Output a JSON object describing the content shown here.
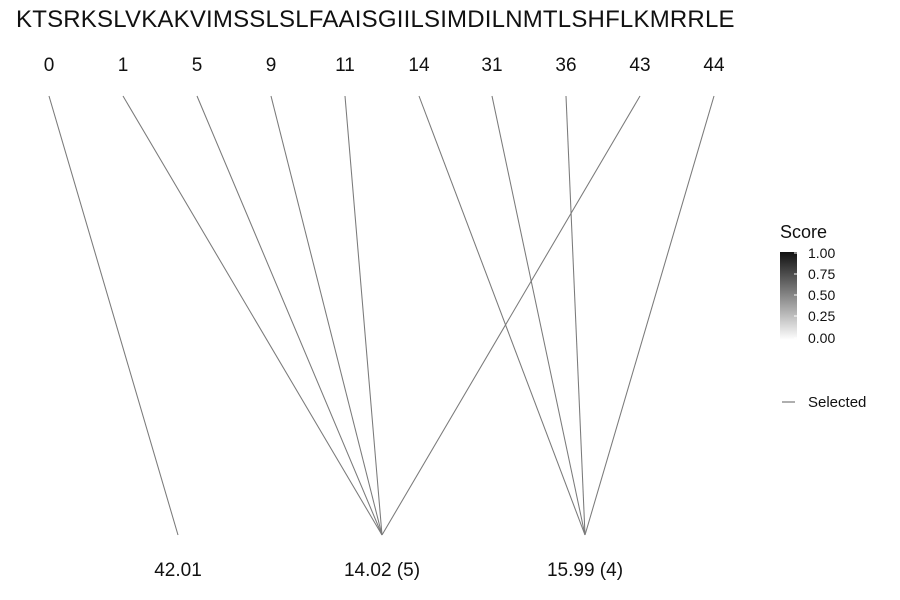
{
  "sequence": "KTSRKSLVKAKVIMSSLSLFAAISGIILSIMDILNMTLSHFLKMRRLE",
  "positions": [
    "0",
    "1",
    "5",
    "9",
    "11",
    "14",
    "31",
    "36",
    "43",
    "44"
  ],
  "targets": [
    {
      "label": "42.01",
      "sources": [
        0
      ]
    },
    {
      "label": "14.02 (5)",
      "sources": [
        1,
        2,
        3,
        4,
        8
      ]
    },
    {
      "label": "15.99 (4)",
      "sources": [
        5,
        6,
        7,
        9
      ]
    }
  ],
  "legend": {
    "score_title": "Score",
    "score_ticks": [
      "1.00",
      "0.75",
      "0.50",
      "0.25",
      "0.00"
    ],
    "selected_label": "Selected",
    "line_color": "#7a7a7a",
    "gradient_top": "#111111",
    "gradient_bottom": "#ffffff"
  }
}
